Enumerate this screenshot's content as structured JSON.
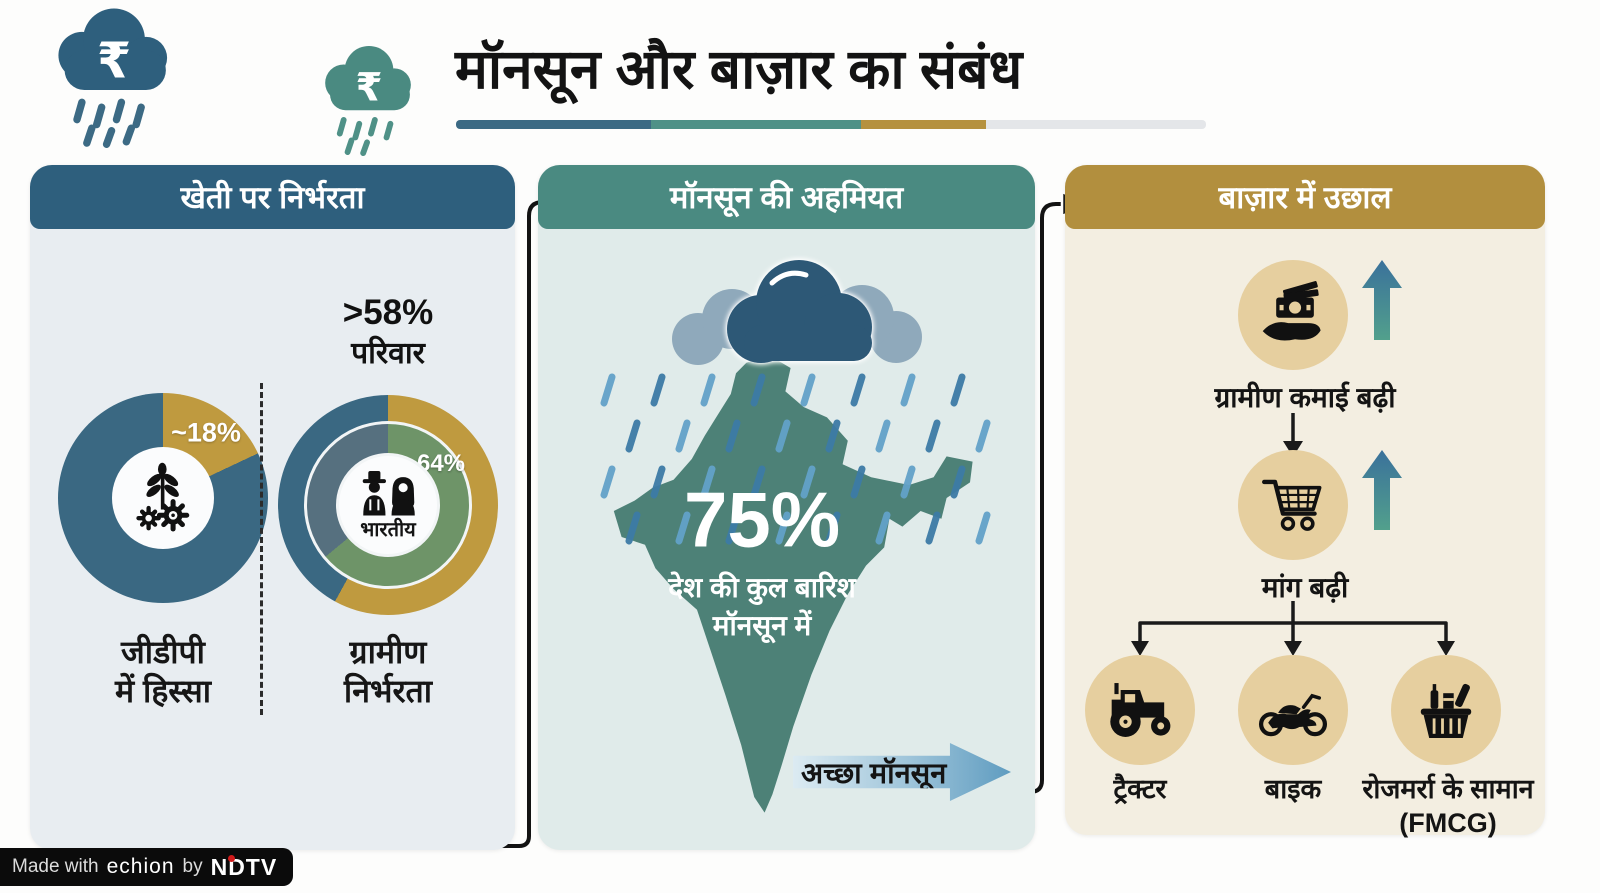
{
  "header": {
    "title": "मॉनसून और बाज़ार का संबंध",
    "rupee": "₹",
    "underline_colors": [
      "#3c6a84",
      "#4f9187",
      "#b5913f",
      "#e4e6e9"
    ]
  },
  "colors": {
    "header_blue": "#2e5f7d",
    "header_teal": "#4a8a81",
    "header_gold": "#b28f3e",
    "donut_gold": "#bf9a3f",
    "donut_blue": "#3a6882",
    "donut_green": "#6e9468",
    "donut_slate": "#56707f",
    "map_teal": "#4d8177",
    "storm_cloud": "#2d5876",
    "light_cloud": "#8fa9bb",
    "tan_circle": "#e6cf9f",
    "ndtv_dot_red": "#d11a1a"
  },
  "panels": {
    "farming": {
      "header": "खेती पर निर्भरता",
      "gdp": {
        "value": "~18%",
        "caption1": "जीडीपी",
        "caption2": "में हिस्सा"
      },
      "rural": {
        "top1": ">58%",
        "top2": "परिवार",
        "inner": ">64%",
        "center": "भारतीय",
        "caption1": "ग्रामीण",
        "caption2": "निर्भरता"
      }
    },
    "monsoon": {
      "header": "मॉनसून की अहमियत",
      "stat": "75%",
      "cap1": "देश की कुल बारिश",
      "cap2": "मॉनसून में",
      "arrow": "अच्छा मॉनसून"
    },
    "market": {
      "header": "बाज़ार में उछाल",
      "income": "ग्रामीण कमाई बढ़ी",
      "demand": "मांग बढ़ी",
      "tractor": "ट्रैक्टर",
      "bike": "बाइक",
      "fmcg1": "रोजमर्रा के सामान",
      "fmcg2": "(FMCG)"
    }
  },
  "footer": {
    "made_with": "Made with",
    "tool": "echion",
    "by": "by",
    "brand": "NDTV"
  },
  "chart_data": [
    {
      "type": "pie",
      "title": "जीडीपी में हिस्सा",
      "display_label": "~18%",
      "values": [
        18,
        82
      ],
      "colors": [
        "#bf9a3f",
        "#3a6882"
      ],
      "donut": true
    },
    {
      "type": "pie",
      "title": "ग्रामीण निर्भरता",
      "rings": [
        {
          "name": "परिवार",
          "display_label": ">58%",
          "values": [
            58,
            42
          ],
          "colors": [
            "#bf9a3f",
            "#3a6882"
          ]
        },
        {
          "name": "भारतीय",
          "display_label": ">64%",
          "values": [
            64,
            36
          ],
          "colors": [
            "#6e9468",
            "#56707f"
          ]
        }
      ],
      "donut": true
    }
  ]
}
